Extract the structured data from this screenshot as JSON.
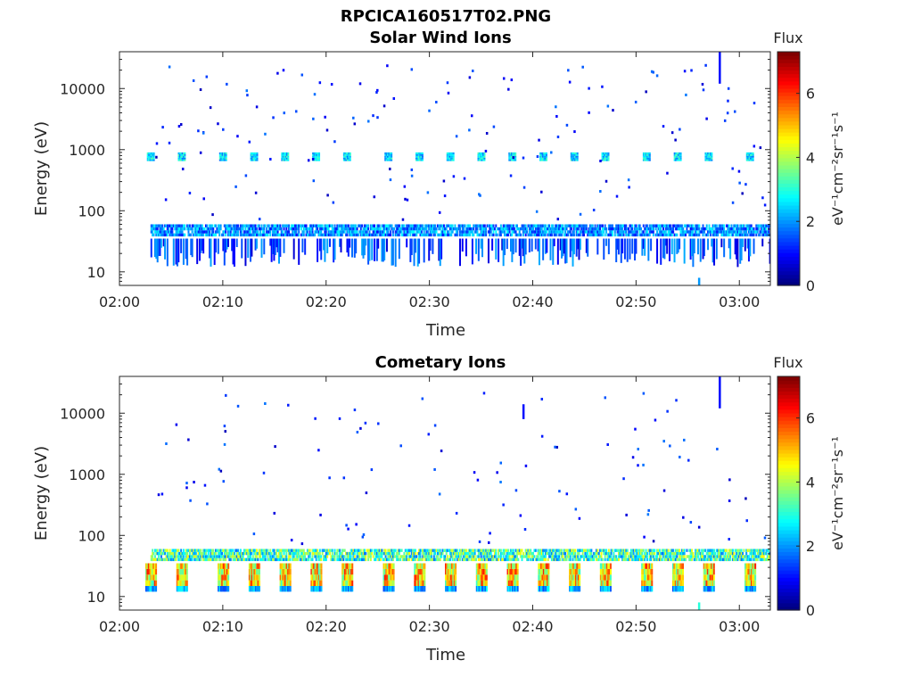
{
  "figure": {
    "title": "RPCICA160517T02.PNG"
  },
  "chart_data": [
    {
      "type": "heatmap",
      "title": "Solar Wind Ions",
      "xlabel": "Time",
      "ylabel": "Energy (eV)",
      "yscale": "log",
      "ylim": [
        6,
        40000
      ],
      "xlim": [
        "02:00",
        "03:03"
      ],
      "xticks": [
        "02:00",
        "02:10",
        "02:20",
        "02:30",
        "02:40",
        "02:50",
        "03:00"
      ],
      "yticks": [
        "10",
        "100",
        "1000",
        "10000"
      ],
      "grid": false,
      "colorbar": {
        "label": "eV⁻¹cm⁻²sr⁻¹s⁻¹",
        "title": "Flux",
        "range": [
          0,
          7.3
        ],
        "ticks": [
          "0",
          "2",
          "4",
          "6"
        ],
        "colormap": "jet"
      },
      "data_start": "02:03",
      "data_end": "03:03",
      "bands": [
        {
          "energy_low": 38,
          "energy_high": 60,
          "flux": 2.0,
          "description": "continuous band"
        },
        {
          "energy_low": 12,
          "energy_high": 35,
          "flux": 1.2,
          "description": "intermittent vertical streaks"
        },
        {
          "energy_low": 650,
          "energy_high": 900,
          "flux": 2.8,
          "description": "periodic blobs every ~3 min"
        }
      ],
      "blob_times": [
        "02:03",
        "02:06",
        "02:10",
        "02:13",
        "02:16",
        "02:19",
        "02:22",
        "02:26",
        "02:29",
        "02:32",
        "02:35",
        "02:38",
        "02:41",
        "02:44",
        "02:47",
        "02:51",
        "02:54",
        "02:57",
        "03:01"
      ],
      "high_energy_features": [
        {
          "time": "02:58",
          "energy_low": 12000,
          "energy_high": 40000,
          "flux": 1.0
        },
        {
          "time": "02:56",
          "energy_low": 6,
          "energy_high": 8,
          "flux": 2.0
        }
      ]
    },
    {
      "type": "heatmap",
      "title": "Cometary Ions",
      "xlabel": "Time",
      "ylabel": "Energy (eV)",
      "yscale": "log",
      "ylim": [
        6,
        40000
      ],
      "xlim": [
        "02:00",
        "03:03"
      ],
      "xticks": [
        "02:00",
        "02:10",
        "02:20",
        "02:30",
        "02:40",
        "02:50",
        "03:00"
      ],
      "yticks": [
        "10",
        "100",
        "1000",
        "10000"
      ],
      "grid": false,
      "colorbar": {
        "label": "eV⁻¹cm⁻²sr⁻¹s⁻¹",
        "title": "Flux",
        "range": [
          0,
          7.3
        ],
        "ticks": [
          "0",
          "2",
          "4",
          "6"
        ],
        "colormap": "jet"
      },
      "data_start": "02:03",
      "data_end": "03:03",
      "bands": [
        {
          "energy_low": 38,
          "energy_high": 60,
          "flux": 3.3,
          "description": "continuous band"
        },
        {
          "energy_low": 12,
          "energy_high": 35,
          "flux": 5.2,
          "description": "periodic bursts every ~3 min"
        }
      ],
      "blob_times": [
        "02:03",
        "02:06",
        "02:10",
        "02:13",
        "02:16",
        "02:19",
        "02:22",
        "02:26",
        "02:29",
        "02:32",
        "02:35",
        "02:38",
        "02:41",
        "02:44",
        "02:47",
        "02:51",
        "02:54",
        "02:57",
        "03:01"
      ],
      "high_energy_features": [
        {
          "time": "02:58",
          "energy_low": 12000,
          "energy_high": 40000,
          "flux": 1.0
        },
        {
          "time": "02:39",
          "energy_low": 8000,
          "energy_high": 14000,
          "flux": 1.0
        },
        {
          "time": "02:56",
          "energy_low": 6,
          "energy_high": 8,
          "flux": 3.0
        }
      ]
    }
  ]
}
